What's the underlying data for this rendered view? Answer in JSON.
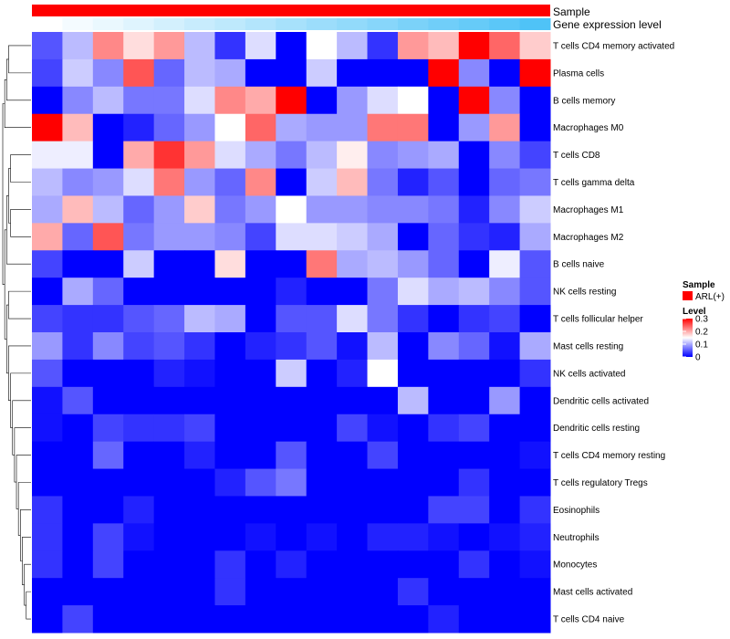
{
  "chart_data": {
    "type": "heatmap",
    "annotations": [
      {
        "name": "Sample",
        "color": "#ff0000"
      },
      {
        "name": "Gene expression level",
        "gradient": [
          "#ffffff",
          "#4fc3f7"
        ]
      }
    ],
    "rows": [
      "T cells CD4 memory activated",
      "Plasma cells",
      "B cells memory",
      "Macrophages M0",
      "T cells CD8",
      "T cells gamma delta",
      "Macrophages M1",
      "Macrophages M2",
      "B cells naive",
      "NK cells resting",
      "T cells follicular helper",
      "Mast cells resting",
      "NK cells activated",
      "Dendritic cells activated",
      "Dendritic cells resting",
      "T cells CD4 memory resting",
      "T cells regulatory  Tregs",
      "Eosinophils",
      "Neutrophils",
      "Monocytes",
      "Mast cells activated",
      "T cells CD4 naive"
    ],
    "values": [
      [
        0.05,
        0.11,
        0.22,
        0.17,
        0.21,
        0.11,
        0.03,
        0.13,
        0.0,
        0.15,
        0.11,
        0.03,
        0.21,
        0.19,
        0.3,
        0.24,
        0.18
      ],
      [
        0.04,
        0.12,
        0.08,
        0.25,
        0.06,
        0.11,
        0.1,
        0.0,
        0.0,
        0.12,
        0.0,
        0.0,
        0.0,
        0.3,
        0.08,
        0.0,
        0.3
      ],
      [
        0.0,
        0.08,
        0.11,
        0.07,
        0.07,
        0.13,
        0.22,
        0.2,
        0.3,
        0.0,
        0.09,
        0.13,
        0.15,
        0.0,
        0.3,
        0.08,
        0.0
      ],
      [
        0.3,
        0.19,
        0.0,
        0.02,
        0.06,
        0.09,
        0.15,
        0.24,
        0.1,
        0.09,
        0.09,
        0.23,
        0.23,
        0.0,
        0.09,
        0.21,
        0.0
      ],
      [
        0.14,
        0.14,
        0.0,
        0.2,
        0.27,
        0.21,
        0.13,
        0.1,
        0.07,
        0.11,
        0.16,
        0.08,
        0.09,
        0.1,
        0.0,
        0.08,
        0.04
      ],
      [
        0.11,
        0.08,
        0.09,
        0.13,
        0.23,
        0.09,
        0.06,
        0.22,
        0.0,
        0.12,
        0.19,
        0.07,
        0.02,
        0.05,
        0.0,
        0.06,
        0.07
      ],
      [
        0.1,
        0.19,
        0.11,
        0.06,
        0.09,
        0.18,
        0.07,
        0.09,
        0.15,
        0.09,
        0.09,
        0.08,
        0.08,
        0.07,
        0.02,
        0.08,
        0.12
      ],
      [
        0.2,
        0.06,
        0.25,
        0.07,
        0.09,
        0.09,
        0.08,
        0.04,
        0.13,
        0.13,
        0.12,
        0.1,
        0.0,
        0.06,
        0.03,
        0.02,
        0.1
      ],
      [
        0.04,
        0.0,
        0.0,
        0.12,
        0.0,
        0.0,
        0.17,
        0.0,
        0.0,
        0.23,
        0.1,
        0.11,
        0.09,
        0.06,
        0.0,
        0.14,
        0.05
      ],
      [
        0.0,
        0.1,
        0.06,
        0.0,
        0.0,
        0.0,
        0.0,
        0.0,
        0.02,
        0.0,
        0.0,
        0.07,
        0.13,
        0.1,
        0.11,
        0.08,
        0.05
      ],
      [
        0.04,
        0.03,
        0.03,
        0.05,
        0.06,
        0.11,
        0.1,
        0.0,
        0.05,
        0.05,
        0.13,
        0.07,
        0.03,
        0.0,
        0.03,
        0.04,
        0.0
      ],
      [
        0.09,
        0.03,
        0.08,
        0.04,
        0.05,
        0.03,
        0.0,
        0.02,
        0.03,
        0.05,
        0.01,
        0.11,
        0.0,
        0.08,
        0.06,
        0.01,
        0.1
      ],
      [
        0.05,
        0.0,
        0.0,
        0.0,
        0.02,
        0.01,
        0.0,
        0.0,
        0.12,
        0.0,
        0.02,
        0.15,
        0.0,
        0.0,
        0.0,
        0.0,
        0.03
      ],
      [
        0.01,
        0.05,
        0.0,
        0.0,
        0.0,
        0.0,
        0.0,
        0.0,
        0.0,
        0.0,
        0.0,
        0.0,
        0.11,
        0.0,
        0.0,
        0.09,
        0.0
      ],
      [
        0.01,
        0.0,
        0.04,
        0.03,
        0.03,
        0.04,
        0.0,
        0.0,
        0.0,
        0.0,
        0.04,
        0.01,
        0.0,
        0.03,
        0.04,
        0.0,
        0.0
      ],
      [
        0.0,
        0.0,
        0.06,
        0.0,
        0.0,
        0.02,
        0.0,
        0.0,
        0.05,
        0.0,
        0.0,
        0.04,
        0.0,
        0.0,
        0.0,
        0.0,
        0.01
      ],
      [
        0.0,
        0.0,
        0.0,
        0.0,
        0.0,
        0.0,
        0.02,
        0.05,
        0.07,
        0.0,
        0.0,
        0.0,
        0.0,
        0.0,
        0.03,
        0.0,
        0.0
      ],
      [
        0.03,
        0.0,
        0.0,
        0.02,
        0.0,
        0.0,
        0.0,
        0.0,
        0.0,
        0.0,
        0.0,
        0.0,
        0.0,
        0.04,
        0.04,
        0.0,
        0.03
      ],
      [
        0.03,
        0.0,
        0.04,
        0.01,
        0.0,
        0.0,
        0.0,
        0.01,
        0.0,
        0.01,
        0.0,
        0.02,
        0.02,
        0.01,
        0.0,
        0.01,
        0.02
      ],
      [
        0.03,
        0.0,
        0.04,
        0.0,
        0.0,
        0.0,
        0.03,
        0.0,
        0.02,
        0.0,
        0.0,
        0.0,
        0.0,
        0.0,
        0.03,
        0.0,
        0.01
      ],
      [
        0.0,
        0.0,
        0.0,
        0.0,
        0.0,
        0.0,
        0.03,
        0.0,
        0.0,
        0.0,
        0.0,
        0.0,
        0.03,
        0.0,
        0.0,
        0.0,
        0.0
      ],
      [
        0.0,
        0.04,
        0.0,
        0.0,
        0.0,
        0.0,
        0.0,
        0.0,
        0.0,
        0.0,
        0.0,
        0.0,
        0.0,
        0.02,
        0.0,
        0.0,
        0.0
      ]
    ],
    "gene_expression_level": [
      0.0,
      0.06,
      0.12,
      0.18,
      0.25,
      0.31,
      0.37,
      0.43,
      0.5,
      0.56,
      0.62,
      0.68,
      0.75,
      0.81,
      0.87,
      0.93,
      1.0
    ],
    "color_scale": {
      "min": 0,
      "mid": 0.15,
      "max": 0.3,
      "low": "#0000ff",
      "midColor": "#ffffff",
      "high": "#ff0000"
    },
    "legend": {
      "sample_title": "Sample",
      "sample_entry": "ARL(+)",
      "sample_color": "#ff0000",
      "level_title": "Level",
      "ticks": [
        0.3,
        0.2,
        0.1,
        0
      ],
      "tick_labels": [
        "0.3",
        "0.2",
        "0.1",
        "0"
      ]
    },
    "dendrogram_tree": [
      [
        [
          [
            0,
            1
          ],
          2
        ],
        3
      ],
      [
        [
          [
            [
              4,
              5
            ],
            [
              6,
              7
            ]
          ],
          8
        ],
        [
          [
            9,
            10
          ],
          [
            11,
            [
              12,
              [
                13,
                [
                  14,
                  [
                    15,
                    [
                      16,
                      [
                        17,
                        [
                          18,
                          [
                            19,
                            [
                              20,
                              21
                            ]
                          ]
                        ]
                      ]
                    ]
                  ]
                ]
              ]
            ]
          ]
        ]
      ]
    ]
  }
}
